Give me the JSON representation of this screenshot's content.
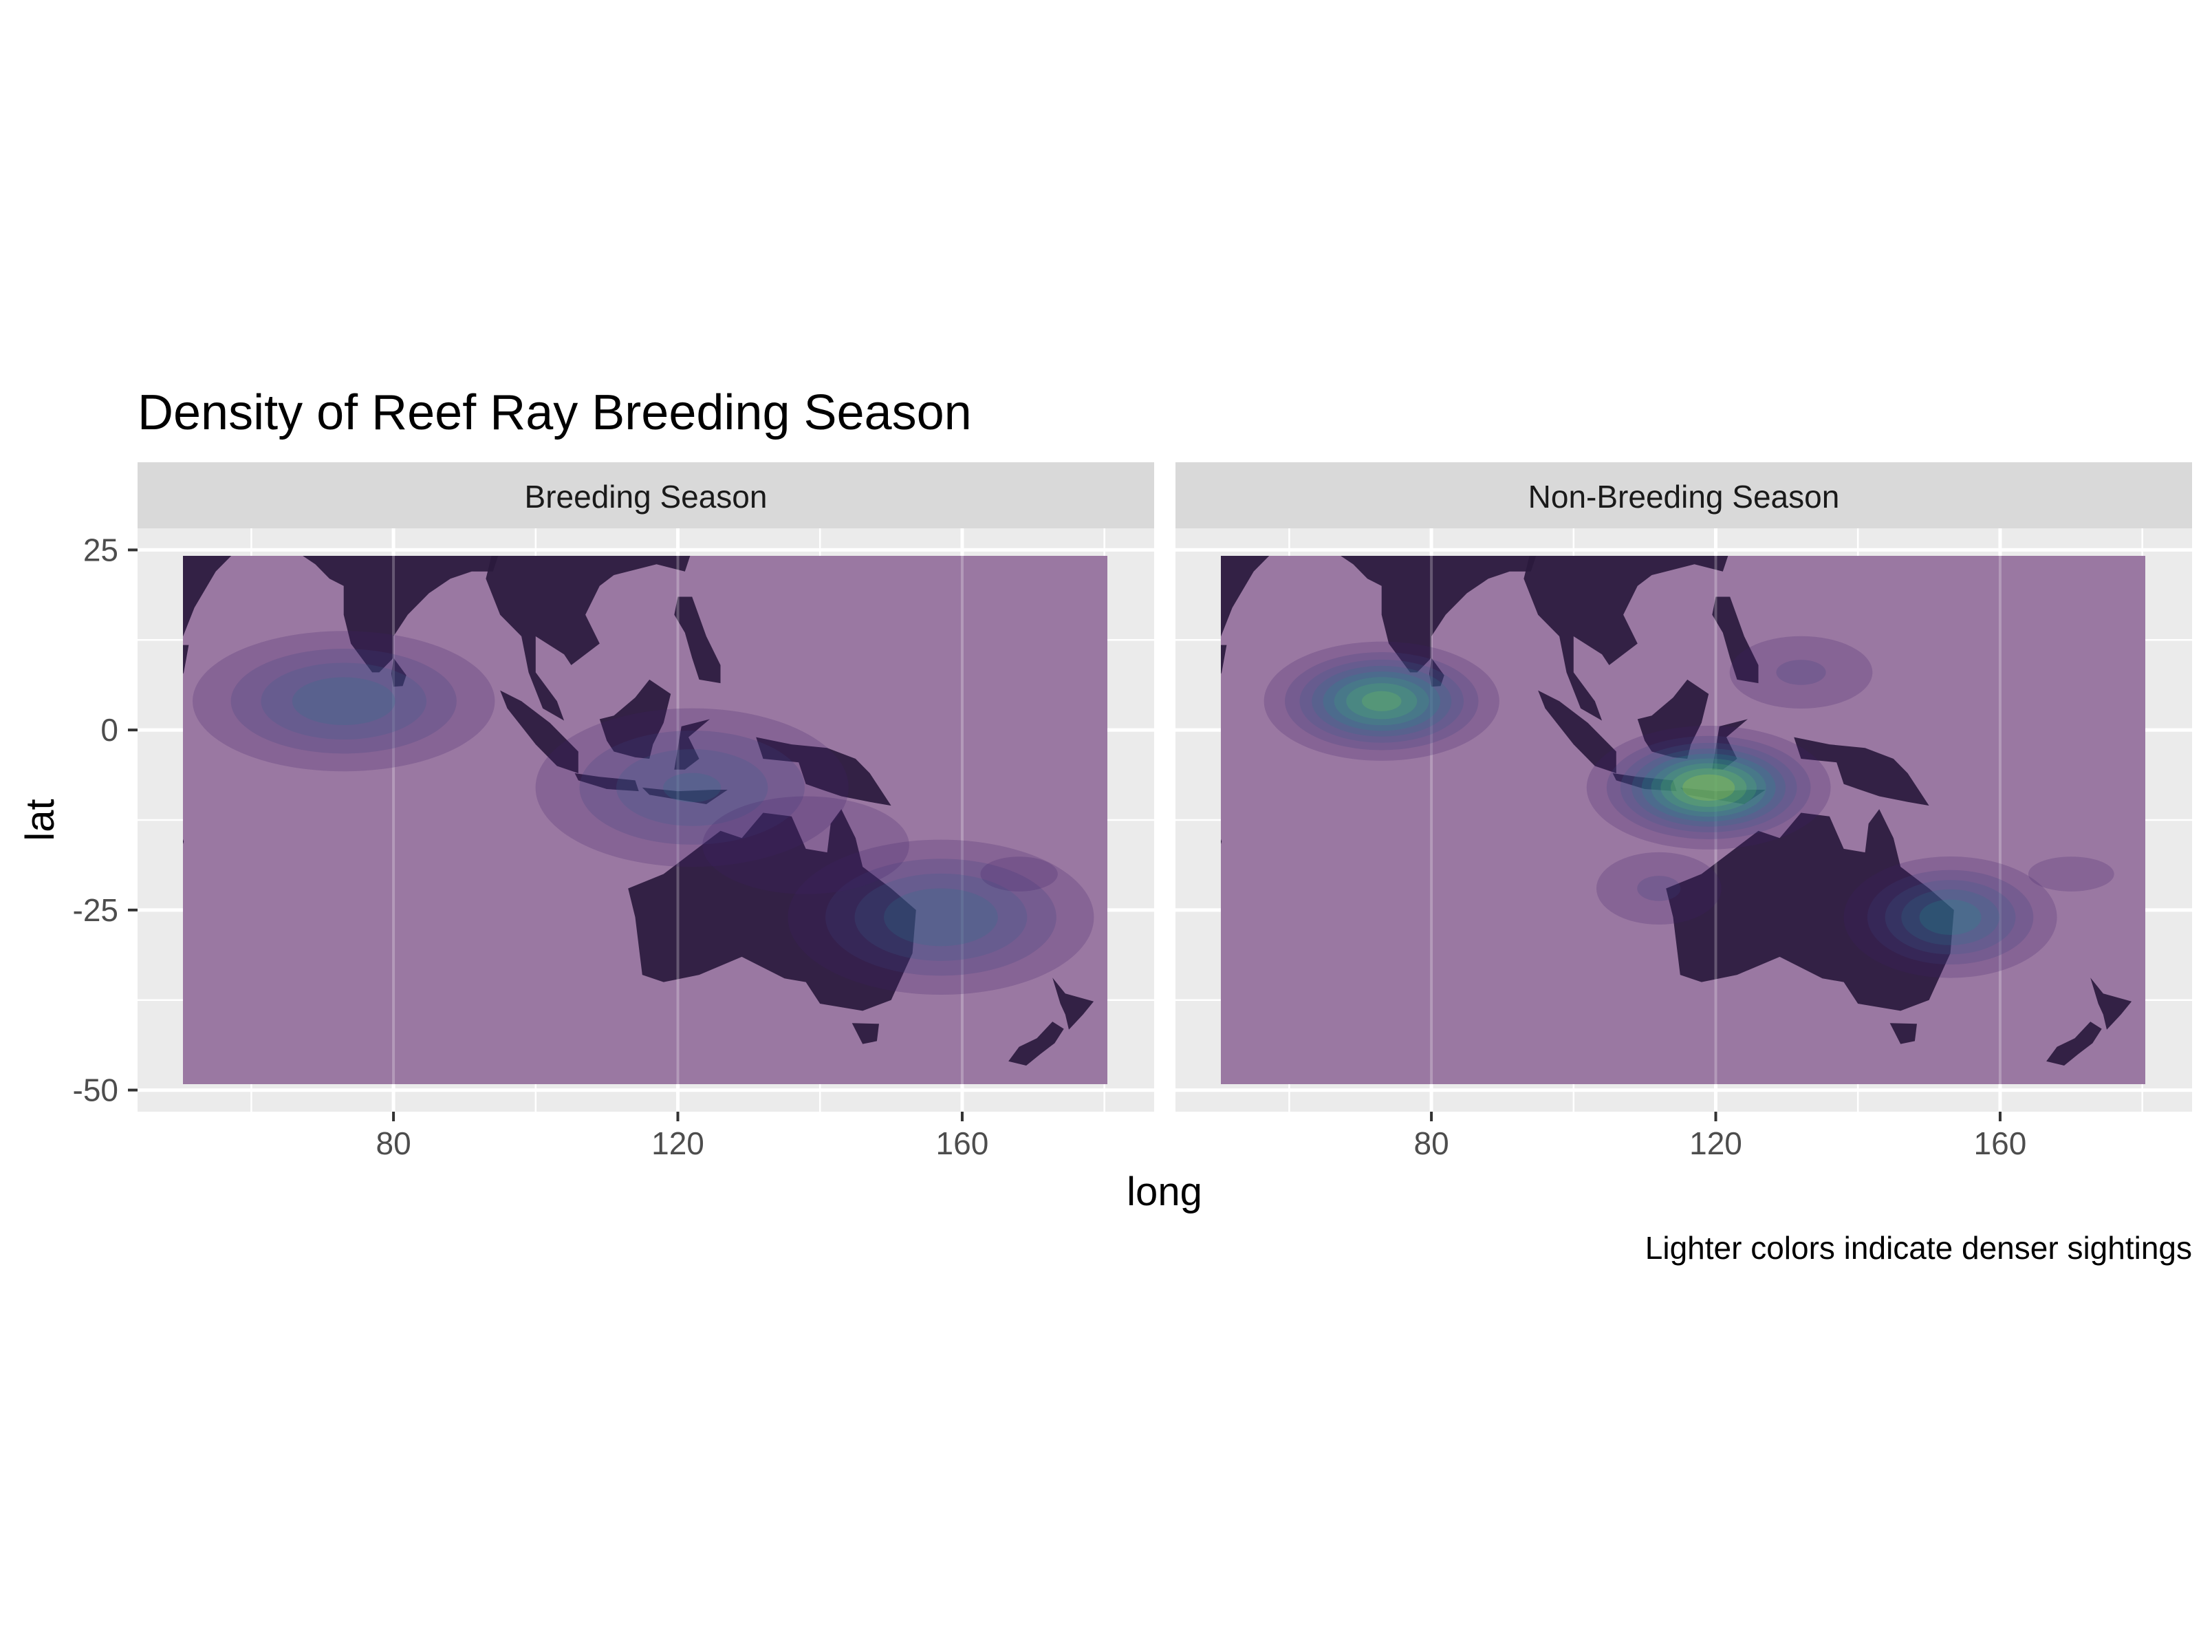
{
  "chart_data": {
    "type": "heatmap",
    "title": "Density of Reef Ray Breeding Season",
    "xlabel": "long",
    "ylabel": "lat",
    "caption": "Lighter colors indicate denser sightings",
    "xlim": [
      44,
      187
    ],
    "ylim": [
      -53,
      28
    ],
    "data_extent": {
      "x": [
        50,
        180
      ],
      "y": [
        -50,
        25
      ]
    },
    "x_ticks": [
      80,
      120,
      160
    ],
    "x_tick_labels": [
      "80",
      "120",
      "160"
    ],
    "y_ticks": [
      25,
      0,
      -25,
      -50
    ],
    "y_tick_labels": [
      "25",
      "0",
      "-25",
      "-50"
    ],
    "grid": true,
    "palette": [
      "#440154",
      "#3b528b",
      "#21918c",
      "#5ec962",
      "#fde725"
    ],
    "land_color": "#2a1a3d",
    "panels": [
      {
        "name": "Breeding Season",
        "hotspots": [
          {
            "x": 73,
            "y": 4,
            "sx": 12,
            "sy": 5.5,
            "level": 0.48
          },
          {
            "x": 122,
            "y": -8,
            "sx": 13,
            "sy": 6.5,
            "level": 0.42
          },
          {
            "x": 157,
            "y": -26,
            "sx": 12,
            "sy": 6,
            "level": 0.5
          },
          {
            "x": 138,
            "y": -16,
            "sx": 15,
            "sy": 7,
            "level": 0.16
          },
          {
            "x": 168,
            "y": -20,
            "sx": 9,
            "sy": 4,
            "level": 0.12
          }
        ]
      },
      {
        "name": "Non-Breeding Season",
        "hotspots": [
          {
            "x": 73,
            "y": 4,
            "sx": 8,
            "sy": 4,
            "level": 0.85
          },
          {
            "x": 119,
            "y": -8,
            "sx": 8,
            "sy": 4,
            "level": 1.0
          },
          {
            "x": 153,
            "y": -26,
            "sx": 8,
            "sy": 4.5,
            "level": 0.58
          },
          {
            "x": 132,
            "y": 8,
            "sx": 8,
            "sy": 4,
            "level": 0.22
          },
          {
            "x": 112,
            "y": -22,
            "sx": 7,
            "sy": 4,
            "level": 0.22
          },
          {
            "x": 170,
            "y": -20,
            "sx": 10,
            "sy": 4,
            "level": 0.12
          }
        ]
      }
    ]
  }
}
